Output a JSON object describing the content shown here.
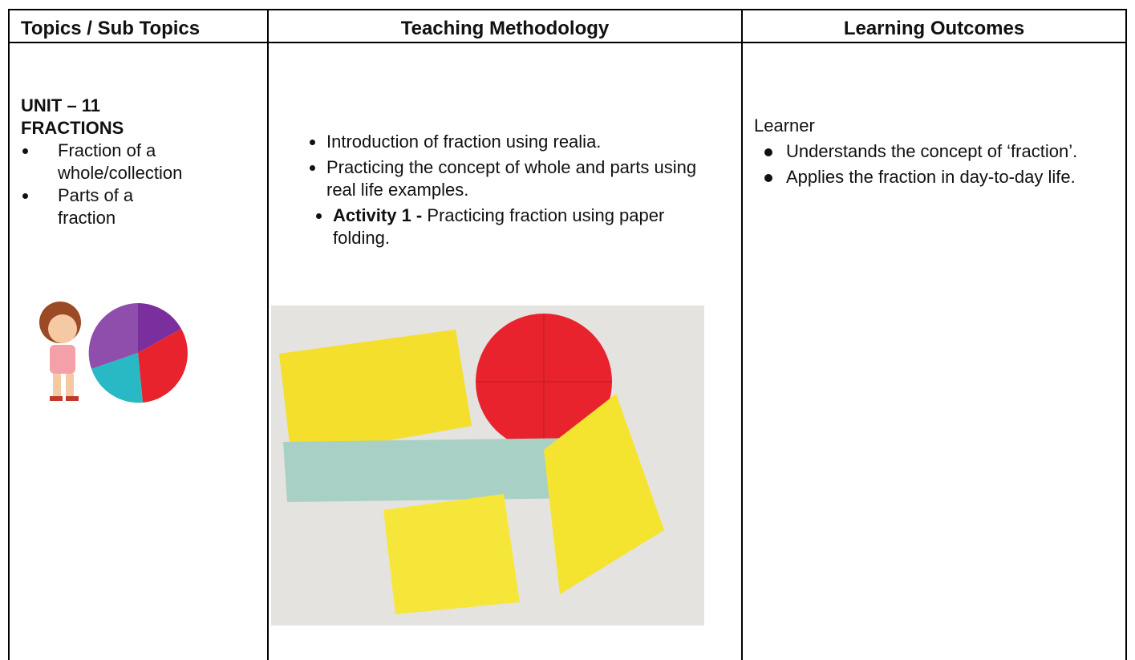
{
  "table": {
    "header": [
      "Topics / Sub Topics",
      "Teaching Methodology",
      "Learning Outcomes"
    ],
    "topics": {
      "unit": "UNIT – 11",
      "title": "FRACTIONS",
      "items": [
        "Fraction of a whole/collection",
        "Parts of a fraction"
      ]
    },
    "methodology": [
      {
        "text": "Introduction of fraction using realia."
      },
      {
        "text": "Practicing the concept of whole and parts using real life examples."
      },
      {
        "label": "Activity 1 -",
        "text": "Practicing fraction using paper folding."
      }
    ],
    "outcomes": {
      "intro": "Learner",
      "items": [
        "Understands the concept of ‘fraction’.",
        "Applies the fraction in day-to-day life."
      ]
    }
  }
}
